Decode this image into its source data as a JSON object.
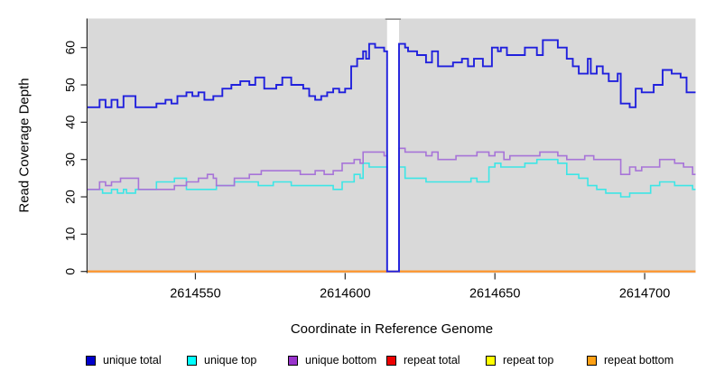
{
  "figure": {
    "y_axis_title": "Read Coverage Depth",
    "x_axis_title": "Coordinate in Reference Genome"
  },
  "chart_data": {
    "type": "line",
    "subtype": "step",
    "title": "",
    "xlabel": "Coordinate in Reference Genome",
    "ylabel": "Read Coverage Depth",
    "xlim": [
      2614514,
      2614717
    ],
    "ylim": [
      0,
      68
    ],
    "x_ticks": [
      2614550,
      2614600,
      2614650,
      2614700
    ],
    "y_ticks": [
      0,
      10,
      20,
      30,
      40,
      50,
      60
    ],
    "grid": false,
    "plot_background": "#d9d9d9",
    "gap_region": {
      "start": 2614614,
      "end": 2614618,
      "fill": "#ffffff",
      "note": "white band where coverage drops to 0"
    },
    "legend_position": "bottom",
    "series": [
      {
        "name": "unique total",
        "line_color": "#2020dd",
        "legend_fill": "#0000cc",
        "steps": [
          [
            2614514,
            44
          ],
          [
            2614518,
            46
          ],
          [
            2614520,
            44
          ],
          [
            2614522,
            46
          ],
          [
            2614524,
            44
          ],
          [
            2614526,
            47
          ],
          [
            2614530,
            44
          ],
          [
            2614537,
            45
          ],
          [
            2614540,
            46
          ],
          [
            2614542,
            45
          ],
          [
            2614544,
            47
          ],
          [
            2614547,
            48
          ],
          [
            2614549,
            47
          ],
          [
            2614551,
            48
          ],
          [
            2614553,
            46
          ],
          [
            2614556,
            47
          ],
          [
            2614559,
            49
          ],
          [
            2614562,
            50
          ],
          [
            2614565,
            51
          ],
          [
            2614568,
            50
          ],
          [
            2614570,
            52
          ],
          [
            2614573,
            49
          ],
          [
            2614577,
            50
          ],
          [
            2614579,
            52
          ],
          [
            2614582,
            50
          ],
          [
            2614586,
            49
          ],
          [
            2614588,
            47
          ],
          [
            2614590,
            46
          ],
          [
            2614592,
            47
          ],
          [
            2614594,
            48
          ],
          [
            2614596,
            49
          ],
          [
            2614598,
            48
          ],
          [
            2614600,
            49
          ],
          [
            2614602,
            55
          ],
          [
            2614604,
            57
          ],
          [
            2614606,
            59
          ],
          [
            2614607,
            57
          ],
          [
            2614608,
            61
          ],
          [
            2614610,
            60
          ],
          [
            2614613,
            59
          ],
          [
            2614614,
            0
          ],
          [
            2614618,
            61
          ],
          [
            2614620,
            60
          ],
          [
            2614621,
            59
          ],
          [
            2614624,
            58
          ],
          [
            2614627,
            56
          ],
          [
            2614629,
            59
          ],
          [
            2614631,
            55
          ],
          [
            2614636,
            56
          ],
          [
            2614639,
            57
          ],
          [
            2614641,
            55
          ],
          [
            2614643,
            57
          ],
          [
            2614646,
            55
          ],
          [
            2614649,
            60
          ],
          [
            2614651,
            59
          ],
          [
            2614652,
            60
          ],
          [
            2614654,
            58
          ],
          [
            2614660,
            60
          ],
          [
            2614664,
            58
          ],
          [
            2614666,
            62
          ],
          [
            2614671,
            60
          ],
          [
            2614674,
            57
          ],
          [
            2614676,
            55
          ],
          [
            2614678,
            53
          ],
          [
            2614681,
            57
          ],
          [
            2614682,
            53
          ],
          [
            2614684,
            55
          ],
          [
            2614686,
            53
          ],
          [
            2614688,
            51
          ],
          [
            2614691,
            53
          ],
          [
            2614692,
            45
          ],
          [
            2614695,
            44
          ],
          [
            2614697,
            49
          ],
          [
            2614699,
            48
          ],
          [
            2614703,
            50
          ],
          [
            2614706,
            54
          ],
          [
            2614709,
            53
          ],
          [
            2614712,
            52
          ],
          [
            2614714,
            48
          ]
        ]
      },
      {
        "name": "unique top",
        "line_color": "#3ce6e6",
        "legend_fill": "#00ffff",
        "steps": [
          [
            2614514,
            22
          ],
          [
            2614519,
            21
          ],
          [
            2614522,
            22
          ],
          [
            2614524,
            21
          ],
          [
            2614526,
            22
          ],
          [
            2614527,
            21
          ],
          [
            2614530,
            22
          ],
          [
            2614537,
            24
          ],
          [
            2614543,
            25
          ],
          [
            2614547,
            22
          ],
          [
            2614557,
            23
          ],
          [
            2614563,
            24
          ],
          [
            2614571,
            23
          ],
          [
            2614576,
            24
          ],
          [
            2614582,
            23
          ],
          [
            2614596,
            22
          ],
          [
            2614599,
            24
          ],
          [
            2614603,
            26
          ],
          [
            2614605,
            25
          ],
          [
            2614606,
            29
          ],
          [
            2614608,
            28
          ],
          [
            2614614,
            0
          ],
          [
            2614618,
            28
          ],
          [
            2614620,
            25
          ],
          [
            2614627,
            24
          ],
          [
            2614642,
            25
          ],
          [
            2614644,
            24
          ],
          [
            2614648,
            28
          ],
          [
            2614650,
            29
          ],
          [
            2614652,
            28
          ],
          [
            2614660,
            29
          ],
          [
            2614664,
            30
          ],
          [
            2614671,
            29
          ],
          [
            2614674,
            26
          ],
          [
            2614678,
            25
          ],
          [
            2614681,
            23
          ],
          [
            2614684,
            22
          ],
          [
            2614687,
            21
          ],
          [
            2614692,
            20
          ],
          [
            2614695,
            21
          ],
          [
            2614702,
            23
          ],
          [
            2614705,
            24
          ],
          [
            2614710,
            23
          ],
          [
            2614716,
            22
          ]
        ]
      },
      {
        "name": "unique bottom",
        "line_color": "#a774d8",
        "legend_fill": "#9933cc",
        "steps": [
          [
            2614514,
            22
          ],
          [
            2614518,
            24
          ],
          [
            2614520,
            23
          ],
          [
            2614522,
            24
          ],
          [
            2614525,
            25
          ],
          [
            2614531,
            22
          ],
          [
            2614543,
            23
          ],
          [
            2614547,
            24
          ],
          [
            2614551,
            25
          ],
          [
            2614554,
            26
          ],
          [
            2614556,
            25
          ],
          [
            2614557,
            23
          ],
          [
            2614563,
            25
          ],
          [
            2614568,
            26
          ],
          [
            2614572,
            27
          ],
          [
            2614585,
            26
          ],
          [
            2614590,
            27
          ],
          [
            2614593,
            26
          ],
          [
            2614596,
            27
          ],
          [
            2614599,
            29
          ],
          [
            2614603,
            30
          ],
          [
            2614605,
            29
          ],
          [
            2614606,
            32
          ],
          [
            2614613,
            31
          ],
          [
            2614614,
            0
          ],
          [
            2614618,
            33
          ],
          [
            2614620,
            32
          ],
          [
            2614627,
            31
          ],
          [
            2614629,
            32
          ],
          [
            2614631,
            30
          ],
          [
            2614637,
            31
          ],
          [
            2614644,
            32
          ],
          [
            2614648,
            31
          ],
          [
            2614650,
            32
          ],
          [
            2614653,
            30
          ],
          [
            2614655,
            31
          ],
          [
            2614665,
            32
          ],
          [
            2614671,
            31
          ],
          [
            2614674,
            30
          ],
          [
            2614680,
            31
          ],
          [
            2614683,
            30
          ],
          [
            2614692,
            26
          ],
          [
            2614695,
            28
          ],
          [
            2614697,
            27
          ],
          [
            2614699,
            28
          ],
          [
            2614705,
            30
          ],
          [
            2614710,
            29
          ],
          [
            2614713,
            28
          ],
          [
            2614716,
            26
          ]
        ]
      },
      {
        "name": "repeat total",
        "line_color": "#dd0000",
        "legend_fill": "#ee0000",
        "steps": [
          [
            2614514,
            0
          ]
        ]
      },
      {
        "name": "repeat top",
        "line_color": "#eeee00",
        "legend_fill": "#ffff00",
        "steps": [
          [
            2614514,
            0
          ]
        ]
      },
      {
        "name": "repeat bottom",
        "line_color": "#ff9429",
        "legend_fill": "#ffa014",
        "steps": [
          [
            2614514,
            0
          ]
        ]
      }
    ]
  }
}
